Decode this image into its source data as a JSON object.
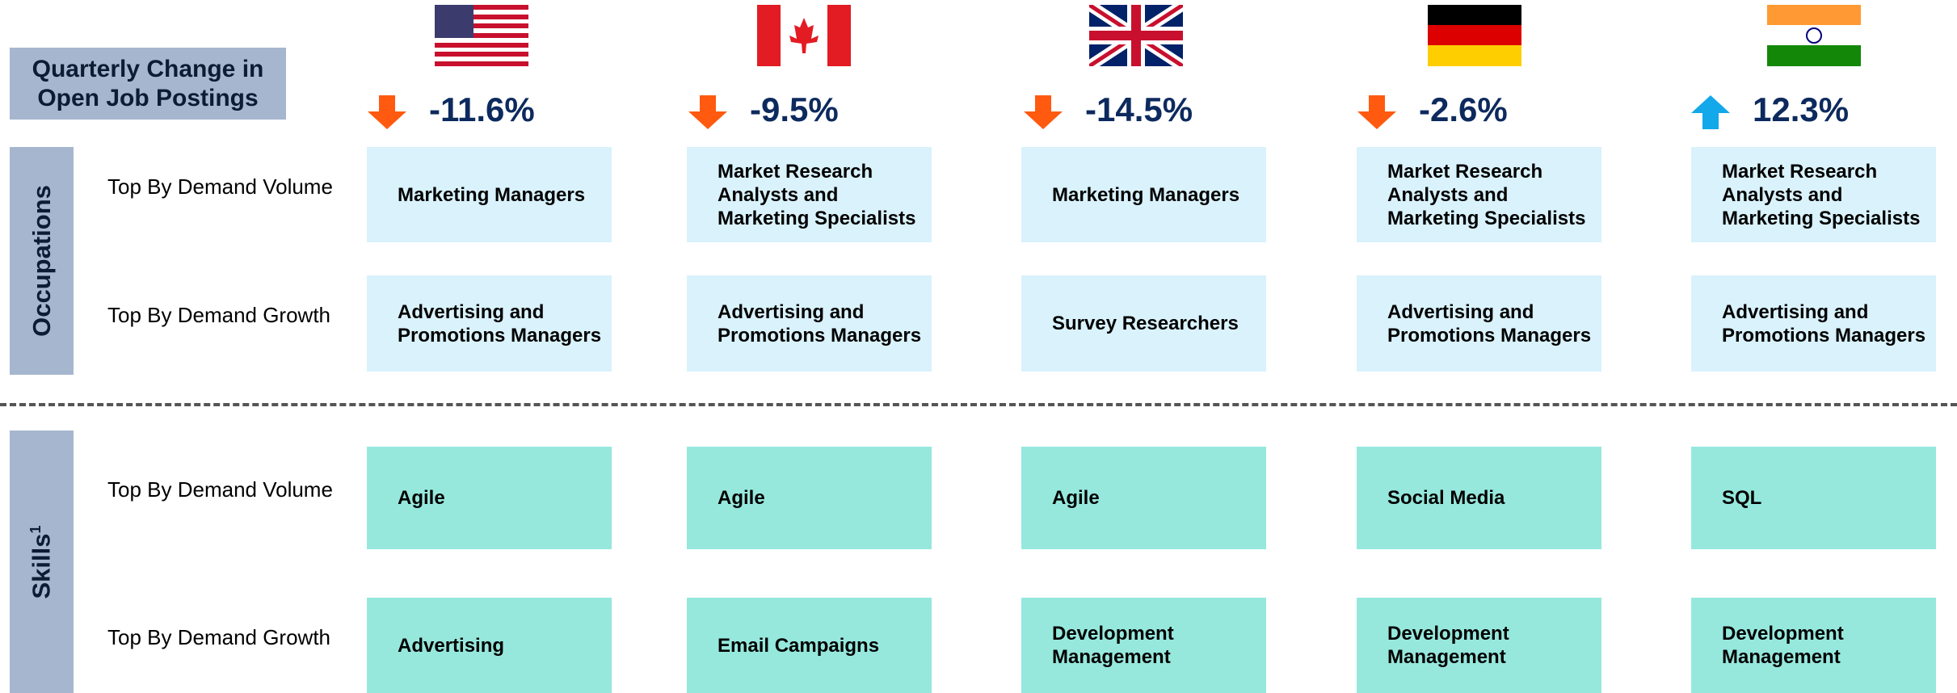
{
  "title": "Quarterly Change in Open Job Postings",
  "changes": [
    "-11.6%",
    "-9.5%",
    "-14.5%",
    "-2.6%",
    "12.3%"
  ],
  "sections": [
    {
      "label": "Occupations",
      "rows": [
        {
          "label": "Top By Demand Volume",
          "cells": [
            "Marketing  Managers",
            "Market Research Analysts and Marketing Specialists",
            "Marketing Managers",
            "Market Research Analysts and Marketing Specialists",
            "Market Research Analysts and Marketing Specialists"
          ]
        },
        {
          "label": "Top By Demand Growth",
          "cells": [
            "Advertising and Promotions Managers",
            "Advertising and Promotions Managers",
            "Survey Researchers",
            "Advertising and Promotions Managers",
            "Advertising and Promotions Managers"
          ]
        }
      ]
    },
    {
      "label": "Skills",
      "superscript": "1",
      "rows": [
        {
          "label": "Top By Demand Volume",
          "cells": [
            "Agile",
            "Agile",
            "Agile",
            "Social Media",
            "SQL"
          ]
        },
        {
          "label": "Top By Demand Growth",
          "cells": [
            "Advertising",
            "Email Campaigns",
            "Development Management",
            "Development Management",
            "Development Management"
          ]
        }
      ]
    }
  ]
}
